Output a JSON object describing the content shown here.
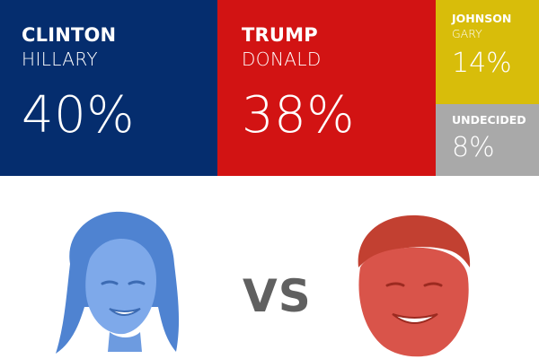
{
  "candidates": {
    "clinton": {
      "last_name": "CLINTON",
      "first_name": "HILLARY",
      "percent": "40%",
      "color": "#052d6e"
    },
    "trump": {
      "last_name": "TRUMP",
      "first_name": "DONALD",
      "percent": "38%",
      "color": "#d21313"
    },
    "johnson": {
      "last_name": "JOHNSON",
      "first_name": "GARY",
      "percent": "14%",
      "color": "#d8bd0a"
    },
    "undecided": {
      "label": "UNDECIDED",
      "percent": "8%",
      "color": "#a9a9a9"
    }
  },
  "versus": {
    "label": "VS",
    "color": "#606060"
  },
  "photos": {
    "clinton": {
      "icon": "clinton-face-illustration",
      "tint": "#5b8fd6"
    },
    "trump": {
      "icon": "trump-face-illustration",
      "tint": "#d3493a"
    }
  }
}
